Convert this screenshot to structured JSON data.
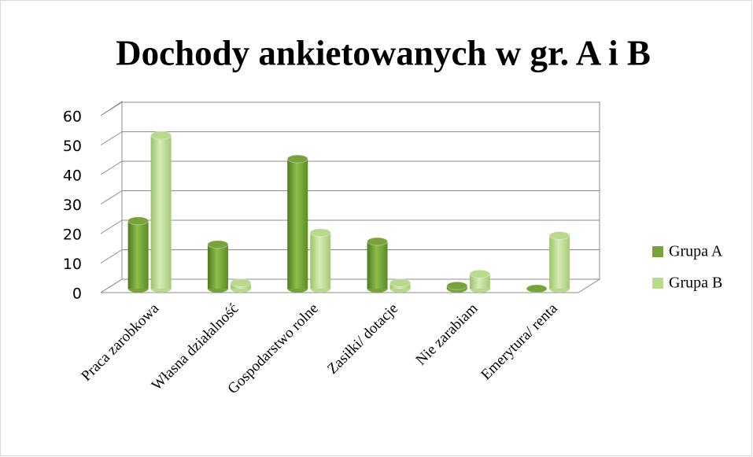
{
  "chart_data": {
    "type": "bar",
    "title": "Dochody  ankietowanych w gr. A i B",
    "categories": [
      "Praca zarobkowa",
      "Własna działalność",
      "Gospodarstwo rolne",
      "Zasiłki/ dotacje",
      "Nie zarabiam",
      "Emerytura/ renta"
    ],
    "series": [
      {
        "name": "Grupa A",
        "color": "#77a33a",
        "values": [
          23,
          15,
          44,
          16,
          1,
          0
        ]
      },
      {
        "name": "Grupa B",
        "color": "#b9d98c",
        "values": [
          52,
          2,
          19,
          2,
          5,
          18
        ]
      }
    ],
    "ylim": [
      0,
      60
    ],
    "yticks": [
      0,
      10,
      20,
      30,
      40,
      50,
      60
    ],
    "grid": true,
    "legend": "right"
  }
}
